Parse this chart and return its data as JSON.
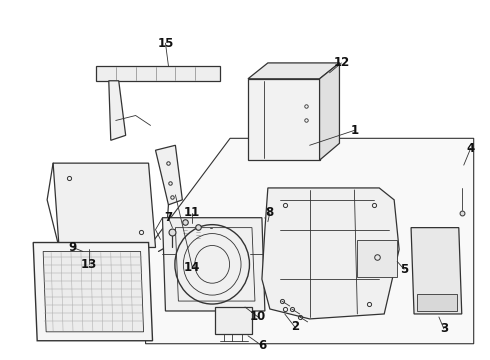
{
  "bg_color": "#ffffff",
  "line_color": "#333333",
  "label_color": "#111111",
  "label_fontsize": 8.5,
  "label_fontweight": "bold",
  "fig_width": 4.9,
  "fig_height": 3.6,
  "dpi": 100
}
